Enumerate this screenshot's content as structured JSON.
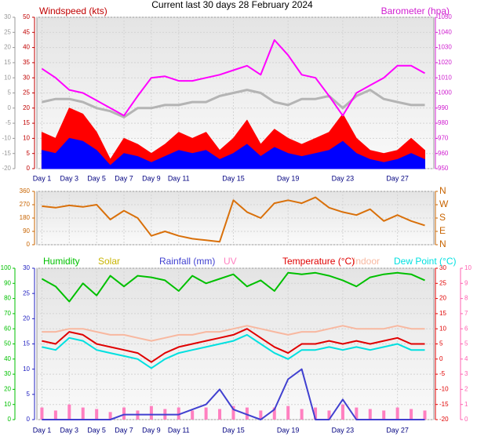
{
  "chart_data": [
    {
      "type": "line",
      "title": "Current last 30 days 28 February 2024",
      "ylabel": "Windspeed (kts)",
      "y2label": "Barometer (hpa)",
      "grid": true,
      "x": [
        1,
        2,
        3,
        4,
        5,
        6,
        7,
        8,
        9,
        10,
        11,
        12,
        13,
        14,
        15,
        16,
        17,
        18,
        19,
        20,
        21,
        22,
        23,
        24,
        25,
        26,
        27,
        28,
        29
      ],
      "xlim": [
        0.63,
        29.66
      ],
      "xticks": [
        {
          "value": 1,
          "label": "Day 1"
        },
        {
          "value": 3,
          "label": "Day 3"
        },
        {
          "value": 5,
          "label": "Day 5"
        },
        {
          "value": 7,
          "label": "Day 7"
        },
        {
          "value": 9,
          "label": "Day 9"
        },
        {
          "value": 11,
          "label": "Day 11"
        },
        {
          "value": 15,
          "label": "Day 15"
        },
        {
          "value": 19,
          "label": "Day 19"
        },
        {
          "value": 23,
          "label": "Day 23"
        },
        {
          "value": 27,
          "label": "Day 27"
        }
      ],
      "ylim": [
        0,
        50
      ],
      "yticks": [
        0,
        5,
        10,
        15,
        20,
        25,
        30,
        35,
        40,
        45,
        50
      ],
      "y3lim": [
        -20,
        30
      ],
      "y3ticks": [
        -20,
        -15,
        -10,
        -5,
        0,
        5,
        10,
        15,
        20,
        25,
        30
      ],
      "y2lim": [
        950,
        1050
      ],
      "y2ticks": [
        950,
        960,
        970,
        980,
        990,
        1000,
        1010,
        1020,
        1030,
        1040,
        1050
      ],
      "series": [
        {
          "color": "#ff0000",
          "style": "area",
          "values": [
            12,
            10,
            20,
            18,
            12,
            3,
            10,
            8,
            5,
            8,
            12,
            10,
            12,
            6,
            10,
            16,
            8,
            13,
            10,
            8,
            10,
            12,
            18,
            10,
            6,
            5,
            6,
            10,
            6
          ]
        },
        {
          "color": "#0000ff",
          "style": "area",
          "values": [
            6,
            5,
            10,
            9,
            6,
            1,
            5,
            4,
            2,
            4,
            6,
            5,
            6,
            3,
            5,
            8,
            4,
            7,
            5,
            4,
            5,
            6,
            9,
            5,
            3,
            2,
            3,
            5,
            3
          ]
        },
        {
          "color": "#b4b4b4",
          "axis": "y3",
          "values": [
            2,
            3,
            3,
            2,
            0,
            -1,
            -3,
            0,
            0,
            1,
            1,
            2,
            2,
            4,
            5,
            6,
            5,
            2,
            1,
            3,
            3,
            4,
            0,
            4,
            6,
            3,
            2,
            1,
            1
          ]
        },
        {
          "color": "#ff00ff",
          "axis": "y2",
          "values": [
            1016,
            1010,
            1002,
            1000,
            995,
            990,
            985,
            998,
            1010,
            1011,
            1008,
            1008,
            1010,
            1012,
            1015,
            1018,
            1012,
            1035,
            1025,
            1012,
            1010,
            998,
            985,
            1000,
            1005,
            1010,
            1018,
            1018,
            1013
          ]
        }
      ]
    },
    {
      "type": "line",
      "grid": true,
      "x": [
        1,
        2,
        3,
        4,
        5,
        6,
        7,
        8,
        9,
        10,
        11,
        12,
        13,
        14,
        15,
        16,
        17,
        18,
        19,
        20,
        21,
        22,
        23,
        24,
        25,
        26,
        27,
        28,
        29
      ],
      "xlim": [
        0.63,
        29.66
      ],
      "xticks": [
        {
          "value": 1,
          "label": "Day 1"
        },
        {
          "value": 3,
          "label": "Day 3"
        },
        {
          "value": 5,
          "label": "Day 5"
        },
        {
          "value": 7,
          "label": "Day 7"
        },
        {
          "value": 9,
          "label": "Day 9"
        },
        {
          "value": 11,
          "label": "Day 11"
        },
        {
          "value": 15,
          "label": "Day 15"
        },
        {
          "value": 19,
          "label": "Day 19"
        },
        {
          "value": 23,
          "label": "Day 23"
        },
        {
          "value": 27,
          "label": "Day 27"
        }
      ],
      "ylim": [
        0,
        360
      ],
      "yticks": [
        0,
        90,
        180,
        270,
        360
      ],
      "y2lim": [
        0,
        360
      ],
      "y2ticks": [
        {
          "value": 0,
          "label": "N"
        },
        {
          "value": 90,
          "label": "E"
        },
        {
          "value": 180,
          "label": "S"
        },
        {
          "value": 270,
          "label": "W"
        },
        {
          "value": 360,
          "label": "N"
        }
      ],
      "series": [
        {
          "color": "#d9700a",
          "values": [
            260,
            250,
            265,
            255,
            270,
            170,
            230,
            180,
            60,
            90,
            60,
            40,
            30,
            20,
            300,
            220,
            180,
            280,
            300,
            280,
            320,
            250,
            220,
            200,
            240,
            160,
            200,
            160,
            130
          ]
        }
      ]
    },
    {
      "type": "line",
      "grid": true,
      "solar_label": "Solar",
      "x": [
        1,
        2,
        3,
        4,
        5,
        6,
        7,
        8,
        9,
        10,
        11,
        12,
        13,
        14,
        15,
        16,
        17,
        18,
        19,
        20,
        21,
        22,
        23,
        24,
        25,
        26,
        27,
        28,
        29
      ],
      "xlim": [
        0.63,
        29.66
      ],
      "xticks": [
        {
          "value": 1,
          "label": "Day 1"
        },
        {
          "value": 3,
          "label": "Day 3"
        },
        {
          "value": 5,
          "label": "Day 5"
        },
        {
          "value": 7,
          "label": "Day 7"
        },
        {
          "value": 9,
          "label": "Day 9"
        },
        {
          "value": 11,
          "label": "Day 11"
        },
        {
          "value": 15,
          "label": "Day 15"
        },
        {
          "value": 19,
          "label": "Day 19"
        },
        {
          "value": 23,
          "label": "Day 23"
        },
        {
          "value": 27,
          "label": "Day 27"
        }
      ],
      "ylim": [
        0,
        100
      ],
      "yticks": [
        0,
        10,
        20,
        30,
        40,
        50,
        60,
        70,
        80,
        90,
        100
      ],
      "y3lim": [
        0,
        30
      ],
      "y3ticks": [
        0,
        5,
        10,
        15,
        20,
        25,
        30
      ],
      "y2lim": [
        -20,
        30
      ],
      "y2ticks": [
        -20,
        -15,
        -10,
        -5,
        0,
        5,
        10,
        15,
        20,
        25,
        30
      ],
      "y4lim": [
        0,
        10
      ],
      "y4ticks": [
        0,
        1,
        2,
        3,
        4,
        5,
        6,
        7,
        8,
        9,
        10
      ],
      "series": [
        {
          "name": "UV",
          "color": "#ff80c0",
          "axis": "y4",
          "style": "bar",
          "values": [
            0.8,
            0.6,
            1,
            0.8,
            0.7,
            0.5,
            0.8,
            0.6,
            0.9,
            0.7,
            0.8,
            0.6,
            0.8,
            0.7,
            0.9,
            0.8,
            0.6,
            0.8,
            0.9,
            0.7,
            0.8,
            0.6,
            1,
            0.8,
            0.7,
            0.6,
            0.8,
            0.7,
            0.6
          ]
        },
        {
          "name": "Humidity",
          "color": "#00c000",
          "values": [
            93,
            88,
            78,
            90,
            82,
            95,
            88,
            95,
            94,
            92,
            85,
            95,
            90,
            93,
            96,
            88,
            92,
            85,
            97,
            96,
            97,
            95,
            92,
            88,
            94,
            96,
            97,
            96,
            92
          ]
        },
        {
          "name": "Rainfall (mm)",
          "color": "#4040d0",
          "axis": "y3",
          "values": [
            0,
            0,
            0,
            0,
            0,
            0,
            1,
            1,
            1,
            1,
            1,
            2,
            3,
            6,
            2,
            1,
            0,
            2,
            8,
            10,
            0,
            0,
            4,
            0,
            0,
            0,
            0,
            0,
            0
          ]
        },
        {
          "name": "Indoor",
          "color": "#f8b8a0",
          "axis": "y2",
          "values": [
            9,
            9,
            10,
            10,
            9,
            8,
            8,
            7,
            6,
            7,
            8,
            8,
            9,
            9,
            10,
            11,
            10,
            9,
            8,
            9,
            9,
            10,
            11,
            10,
            10,
            10,
            11,
            10,
            10
          ]
        },
        {
          "name": "Dew Point (°C)",
          "color": "#00e0e0",
          "axis": "y2",
          "values": [
            4,
            3,
            7,
            6,
            3,
            2,
            1,
            0,
            -3,
            0,
            2,
            3,
            4,
            5,
            6,
            8,
            5,
            2,
            0,
            3,
            3,
            4,
            3,
            4,
            3,
            4,
            5,
            3,
            3
          ]
        },
        {
          "name": "Temperature (°C)",
          "color": "#e00000",
          "axis": "y2",
          "values": [
            6,
            5,
            9,
            8,
            5,
            4,
            3,
            2,
            -1,
            2,
            4,
            5,
            6,
            7,
            8,
            10,
            7,
            4,
            2,
            5,
            5,
            6,
            5,
            6,
            5,
            6,
            7,
            5,
            5
          ]
        }
      ]
    }
  ]
}
